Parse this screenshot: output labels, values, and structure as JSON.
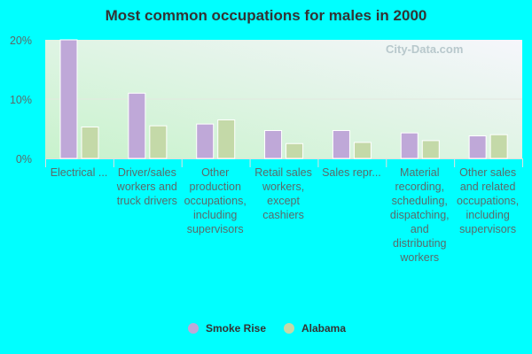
{
  "chart_data": {
    "type": "bar",
    "title": "Most common occupations for males in 2000",
    "categories": [
      "Electrical ...",
      "Driver/sales workers and truck drivers",
      "Other production occupations, including supervisors",
      "Retail sales workers, except cashiers",
      "Sales repr...",
      "Material recording, scheduling, dispatching, and distributing workers",
      "Other sales and related occupations, including supervisors"
    ],
    "series": [
      {
        "name": "Smoke Rise",
        "color": "#bfa8d8",
        "values": [
          20.0,
          11.0,
          5.8,
          4.7,
          4.7,
          4.3,
          3.8
        ]
      },
      {
        "name": "Alabama",
        "color": "#c4d9a8",
        "values": [
          5.3,
          5.5,
          6.5,
          2.5,
          2.7,
          3.0,
          4.0
        ]
      }
    ],
    "ylim": [
      0,
      20
    ],
    "yticks": [
      "0%",
      "10%",
      "20%"
    ],
    "grid": true,
    "legend": "bottom",
    "watermark": "City-Data.com"
  }
}
